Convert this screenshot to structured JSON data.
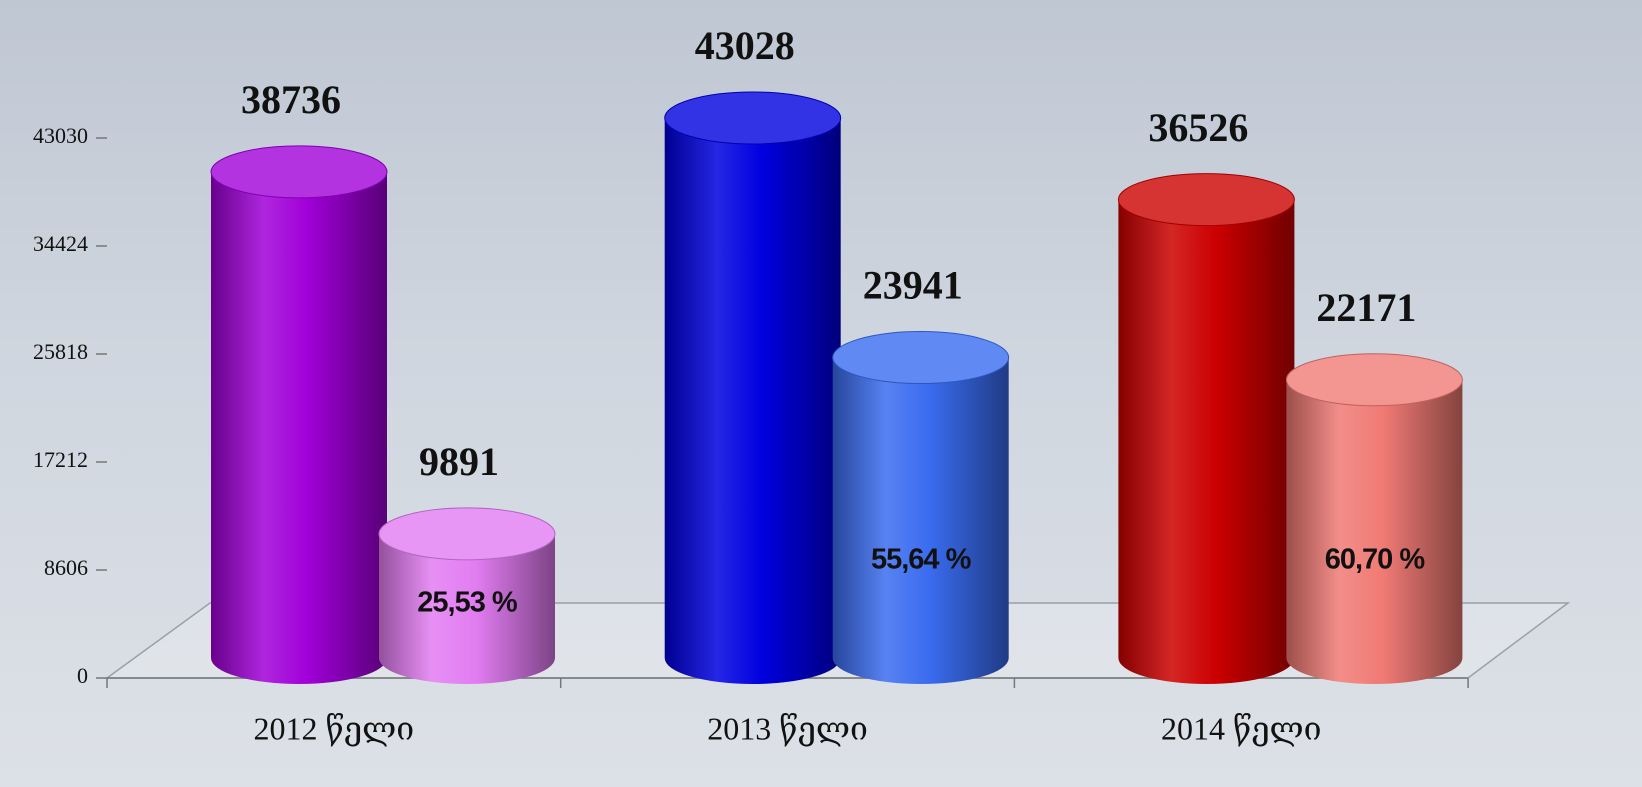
{
  "chart_data": {
    "type": "bar3d",
    "categories": [
      "2012 წელი",
      "2013 წელი",
      "2014 წელი"
    ],
    "series": [
      {
        "colors": [
          "#a000d8",
          "#0000e0",
          "#cc0000"
        ],
        "values": [
          38736,
          43028,
          36526
        ]
      },
      {
        "colors": [
          "#e27cf2",
          "#3a6cf0",
          "#f07a74"
        ],
        "values": [
          9891,
          23941,
          22171
        ],
        "percent_labels": [
          "25,53 %",
          "55,64 %",
          "60,70 %"
        ]
      }
    ],
    "ylim": [
      0,
      43030
    ],
    "yticks": [
      0,
      8606,
      17212,
      25818,
      34424,
      43030
    ]
  }
}
